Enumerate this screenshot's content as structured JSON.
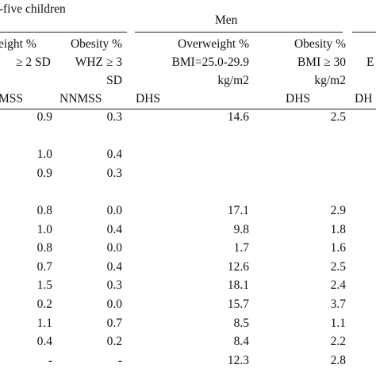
{
  "header": {
    "group_left": "r-five children",
    "group_men": "Men",
    "col1": [
      "eight %",
      "≥ 2 SD"
    ],
    "col2": [
      "Obesity %",
      "WHZ  ≥ 3",
      "SD"
    ],
    "col3": [
      "Overweight %",
      "BMI=25.0-29.9",
      "kg/m2"
    ],
    "col4": [
      "Obesity %",
      "BMI ≥ 30",
      "kg/m2"
    ],
    "col5_partial": "E",
    "src1": "MSS",
    "src2": "NNMSS",
    "src3": "DHS",
    "src4": "DHS",
    "src5": "DH"
  },
  "rows": [
    {
      "c1": "0.9",
      "c2": "0.3",
      "c3": "14.6",
      "c4": "2.5"
    },
    {
      "c1": "",
      "c2": "",
      "c3": "",
      "c4": ""
    },
    {
      "c1": "1.0",
      "c2": "0.4",
      "c3": "",
      "c4": ""
    },
    {
      "c1": "0.9",
      "c2": "0.3",
      "c3": "",
      "c4": ""
    },
    {
      "c1": "",
      "c2": "",
      "c3": "",
      "c4": ""
    },
    {
      "c1": "0.8",
      "c2": "0.0",
      "c3": "17.1",
      "c4": "2.9"
    },
    {
      "c1": "1.0",
      "c2": "0.4",
      "c3": "9.8",
      "c4": "1.8"
    },
    {
      "c1": "0.8",
      "c2": "0.0",
      "c3": "1.7",
      "c4": "1.6"
    },
    {
      "c1": "0.7",
      "c2": "0.4",
      "c3": "12.6",
      "c4": "2.5"
    },
    {
      "c1": "1.5",
      "c2": "0.3",
      "c3": "18.1",
      "c4": "2.4"
    },
    {
      "c1": "0.2",
      "c2": "0.0",
      "c3": "15.7",
      "c4": "3.7"
    },
    {
      "c1": "1.1",
      "c2": "0.7",
      "c3": "8.5",
      "c4": "1.1"
    },
    {
      "c1": "0.4",
      "c2": "0.2",
      "c3": "8.4",
      "c4": "2.2"
    },
    {
      "c1": "-",
      "c2": "-",
      "c3": "12.3",
      "c4": "2.8"
    }
  ]
}
